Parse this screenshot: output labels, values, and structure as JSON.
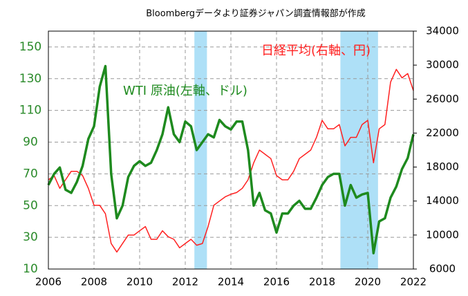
{
  "chart_data": {
    "type": "line",
    "title": "Bloombergデータより証券ジャパン調査情報部が作成",
    "x": [
      2006,
      2006.25,
      2006.5,
      2006.75,
      2007,
      2007.25,
      2007.5,
      2007.75,
      2008,
      2008.25,
      2008.5,
      2008.75,
      2009,
      2009.25,
      2009.5,
      2009.75,
      2010,
      2010.25,
      2010.5,
      2010.75,
      2011,
      2011.25,
      2011.5,
      2011.75,
      2012,
      2012.25,
      2012.5,
      2012.75,
      2013,
      2013.25,
      2013.5,
      2013.75,
      2014,
      2014.25,
      2014.5,
      2014.75,
      2015,
      2015.25,
      2015.5,
      2015.75,
      2016,
      2016.25,
      2016.5,
      2016.75,
      2017,
      2017.25,
      2017.5,
      2017.75,
      2018,
      2018.25,
      2018.5,
      2018.75,
      2019,
      2019.25,
      2019.5,
      2019.75,
      2020,
      2020.25,
      2020.5,
      2020.75,
      2021,
      2021.25,
      2021.5,
      2021.75,
      2022
    ],
    "series": [
      {
        "name": "WTI 原油(左軸、ドル)",
        "color": "#1e8a1e",
        "axis": "y",
        "values": [
          63,
          70,
          74,
          60,
          58,
          65,
          75,
          92,
          100,
          125,
          138,
          70,
          42,
          50,
          68,
          75,
          78,
          75,
          77,
          85,
          95,
          112,
          95,
          90,
          103,
          100,
          85,
          90,
          95,
          93,
          104,
          100,
          98,
          103,
          103,
          85,
          50,
          58,
          47,
          45,
          33,
          45,
          45,
          50,
          53,
          48,
          48,
          55,
          63,
          68,
          70,
          70,
          50,
          63,
          55,
          57,
          58,
          20,
          40,
          42,
          55,
          62,
          73,
          80,
          95
        ]
      },
      {
        "name": "日経平均(右軸、円)",
        "color": "#ff2020",
        "axis": "y2",
        "values": [
          16500,
          17000,
          15500,
          16500,
          17500,
          17500,
          17000,
          15500,
          13500,
          13500,
          12500,
          9000,
          8000,
          9000,
          10000,
          10000,
          10500,
          11000,
          9500,
          9500,
          10500,
          9800,
          9500,
          8500,
          9000,
          9500,
          8800,
          9000,
          11000,
          13500,
          14000,
          14500,
          14800,
          15000,
          15500,
          16500,
          18500,
          20000,
          19500,
          19000,
          17000,
          16500,
          16500,
          17500,
          19000,
          19500,
          20000,
          21500,
          23500,
          22500,
          22500,
          23000,
          20500,
          21500,
          21500,
          23000,
          23500,
          18500,
          22500,
          23000,
          28000,
          29500,
          28500,
          29000,
          27000
        ]
      }
    ],
    "xlim": [
      2006,
      2022
    ],
    "xticks": [
      2006,
      2008,
      2010,
      2012,
      2014,
      2016,
      2018,
      2020,
      2022
    ],
    "ylim": [
      10,
      160
    ],
    "yticks": [
      10,
      30,
      50,
      70,
      90,
      110,
      130,
      150
    ],
    "y2lim": [
      6000,
      34000
    ],
    "y2ticks": [
      6000,
      10000,
      14000,
      18000,
      22000,
      26000,
      30000,
      34000
    ],
    "shaded_ranges": [
      [
        2012.4,
        2012.95
      ],
      [
        2018.8,
        2020.45
      ]
    ],
    "grid": true
  }
}
